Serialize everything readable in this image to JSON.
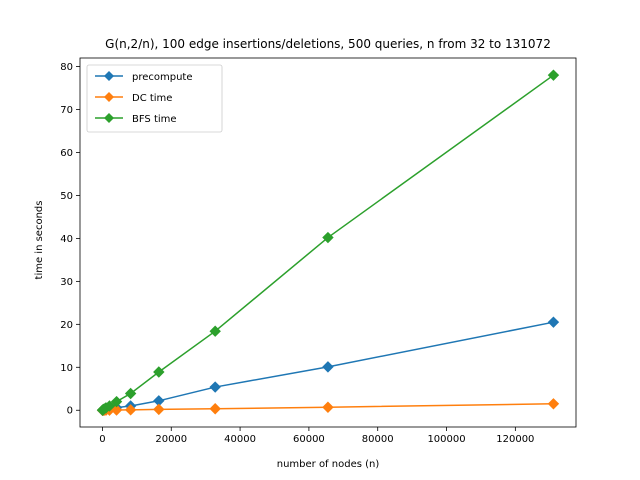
{
  "chart_data": {
    "type": "line",
    "title": "G(n,2/n), 100 edge insertions/deletions, 500 queries, n from 32 to 131072",
    "xlabel": "number of nodes (n)",
    "ylabel": "time in seconds",
    "xlim": [
      -6522,
      137626
    ],
    "ylim": [
      -3.9,
      82.0
    ],
    "xticks": [
      0,
      20000,
      40000,
      60000,
      80000,
      100000,
      120000
    ],
    "xtick_labels": [
      "0",
      "20000",
      "40000",
      "60000",
      "80000",
      "100000",
      "120000"
    ],
    "yticks": [
      0,
      10,
      20,
      30,
      40,
      50,
      60,
      70,
      80
    ],
    "ytick_labels": [
      "0",
      "10",
      "20",
      "30",
      "40",
      "50",
      "60",
      "70",
      "80"
    ],
    "grid": false,
    "legend_position": "top-left",
    "x": [
      32,
      64,
      128,
      256,
      512,
      1024,
      2048,
      4096,
      8192,
      16384,
      32768,
      65536,
      131072
    ],
    "series": [
      {
        "name": "precompute",
        "color": "#1f77b4",
        "marker": "diamond",
        "values": [
          0.01,
          0.01,
          0.02,
          0.03,
          0.05,
          0.1,
          0.25,
          0.6,
          1.0,
          2.2,
          5.4,
          10.1,
          20.5
        ]
      },
      {
        "name": "DC time",
        "color": "#ff7f0e",
        "marker": "diamond",
        "values": [
          0.0,
          0.0,
          0.0,
          0.01,
          0.01,
          0.02,
          0.03,
          0.05,
          0.1,
          0.2,
          0.35,
          0.7,
          1.5
        ]
      },
      {
        "name": "BFS time",
        "color": "#2ca02c",
        "marker": "diamond",
        "values": [
          0.02,
          0.04,
          0.08,
          0.15,
          0.3,
          0.55,
          1.0,
          2.0,
          3.9,
          8.9,
          18.4,
          40.2,
          78.0
        ]
      }
    ]
  }
}
